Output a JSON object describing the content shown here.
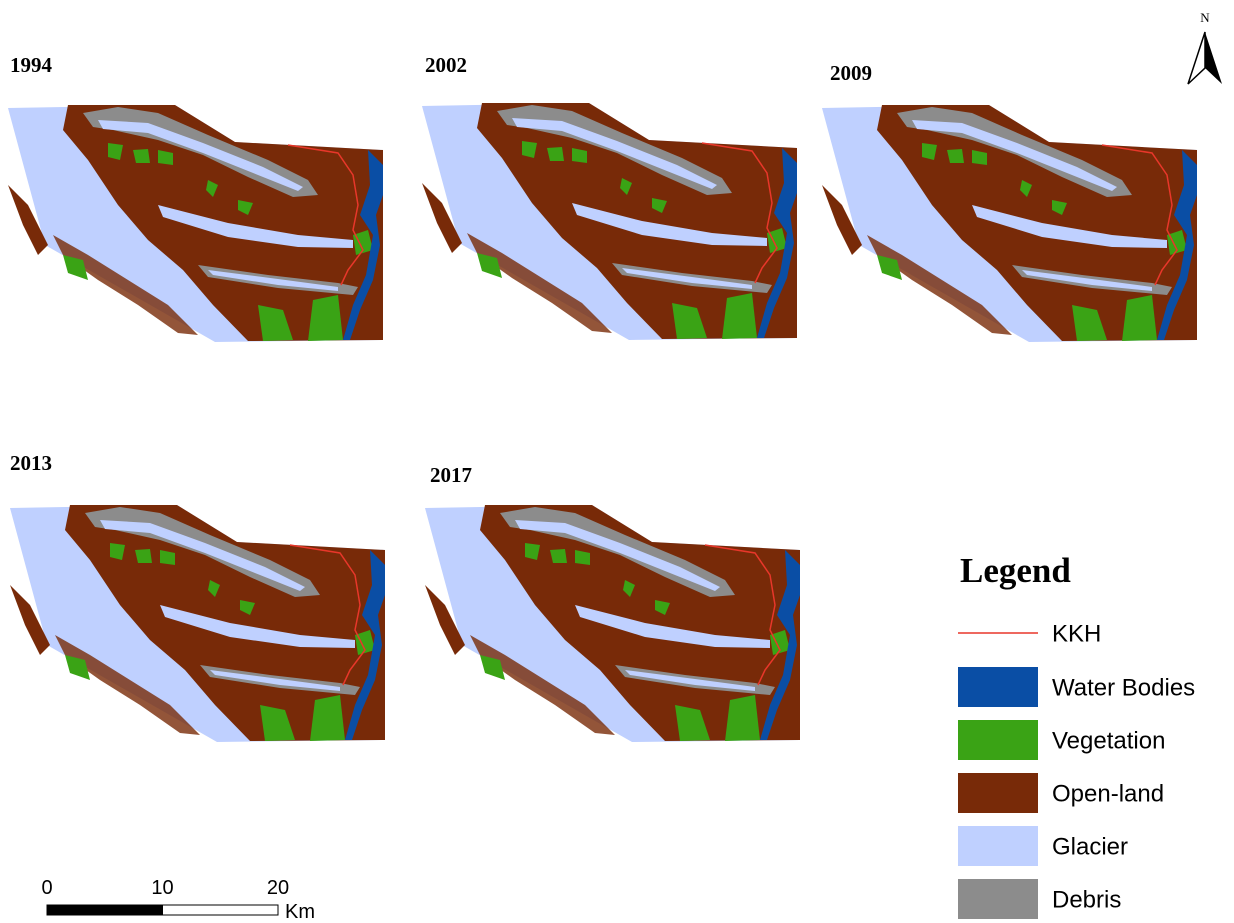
{
  "north": "N",
  "panels": [
    {
      "year": "1994"
    },
    {
      "year": "2002"
    },
    {
      "year": "2009"
    },
    {
      "year": "2013"
    },
    {
      "year": "2017"
    }
  ],
  "legend": {
    "title": "Legend",
    "line": {
      "label": "KKH",
      "color": "#e8372a"
    },
    "items": [
      {
        "label": "Water Bodies",
        "color": "#0a4ea5"
      },
      {
        "label": "Vegetation",
        "color": "#3aa315"
      },
      {
        "label": "Open-land",
        "color": "#782a08"
      },
      {
        "label": "Glacier",
        "color": "#bfd0ff"
      },
      {
        "label": "Debris",
        "color": "#8c8c8c"
      }
    ]
  },
  "scale_bar": {
    "ticks": [
      0,
      10,
      20
    ],
    "unit": "Km"
  }
}
